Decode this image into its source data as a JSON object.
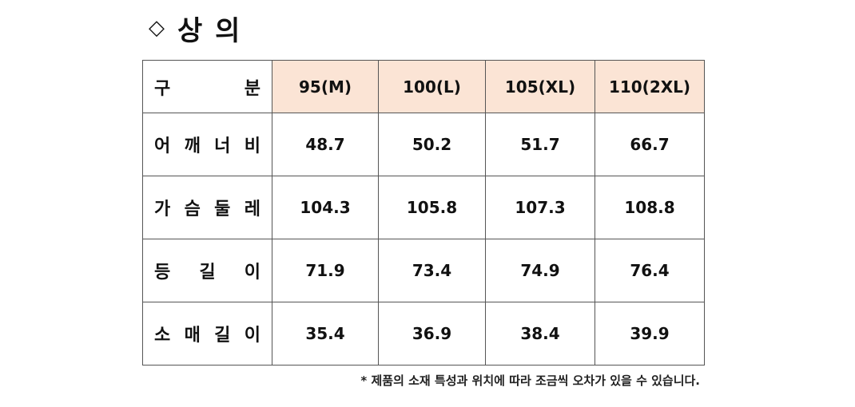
{
  "title": {
    "symbol": "◇",
    "text": "상 의"
  },
  "table": {
    "header": {
      "label_chars": [
        "구",
        "분"
      ],
      "sizes": [
        "95(M)",
        "100(L)",
        "105(XL)",
        "110(2XL)"
      ]
    },
    "rows": [
      {
        "label_chars": [
          "어",
          "깨",
          "너",
          "비"
        ],
        "values": [
          "48.7",
          "50.2",
          "51.7",
          "66.7"
        ]
      },
      {
        "label_chars": [
          "가",
          "슴",
          "둘",
          "레"
        ],
        "values": [
          "104.3",
          "105.8",
          "107.3",
          "108.8"
        ]
      },
      {
        "label_chars": [
          "등",
          "길",
          "이"
        ],
        "values": [
          "71.9",
          "73.4",
          "74.9",
          "76.4"
        ]
      },
      {
        "label_chars": [
          "소",
          "매",
          "길",
          "이"
        ],
        "values": [
          "35.4",
          "36.9",
          "38.4",
          "39.9"
        ]
      }
    ]
  },
  "note": "* 제품의 소재 특성과 위치에 따라 조금씩 오차가 있을 수 있습니다."
}
